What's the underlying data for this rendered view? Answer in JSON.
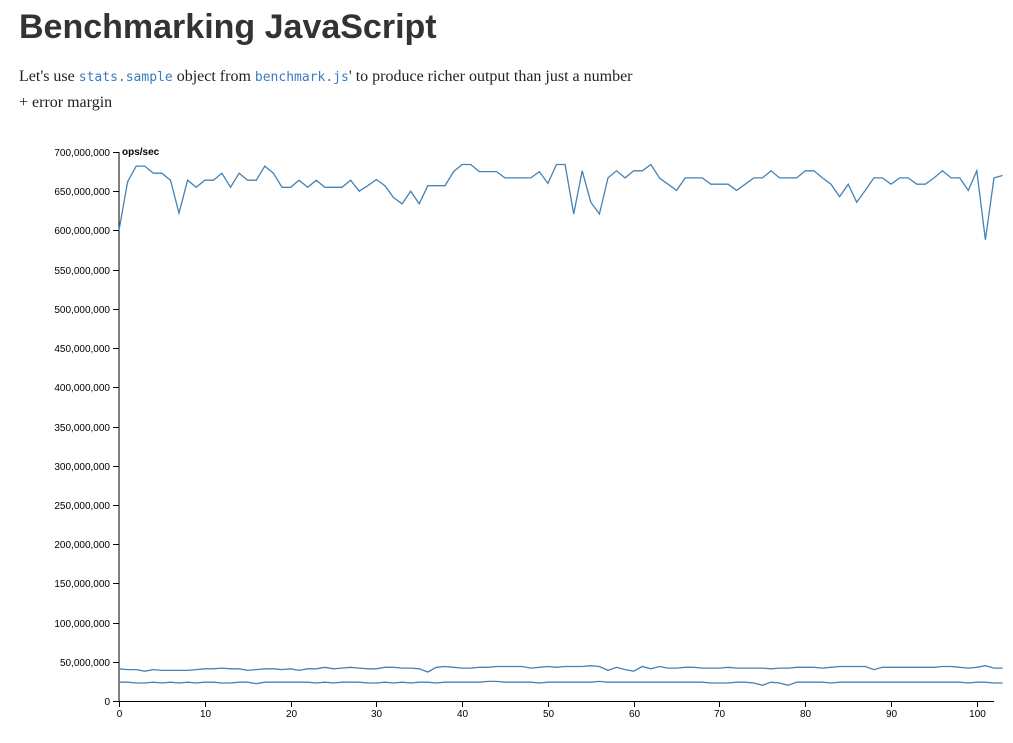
{
  "page": {
    "title": "Benchmarking JavaScript",
    "intro": {
      "before": "Let's use ",
      "code1": "stats.sample",
      "middle": " object from ",
      "code2": "benchmark.js",
      "after": "' to produce richer output than just a number + error margin"
    }
  },
  "colors": {
    "line": "#4682b4",
    "code": "#3a7bbf",
    "title": "#333333"
  },
  "chart_data": {
    "type": "line",
    "title": "",
    "xlabel": "",
    "ylabel": "ops/sec",
    "xlim": [
      0,
      102
    ],
    "ylim": [
      0,
      700000000
    ],
    "grid": false,
    "legend": "none",
    "x_ticks": [
      0,
      10,
      20,
      30,
      40,
      50,
      60,
      70,
      80,
      90,
      100
    ],
    "y_ticks": [
      0,
      50000000,
      100000000,
      150000000,
      200000000,
      250000000,
      300000000,
      350000000,
      400000000,
      450000000,
      500000000,
      550000000,
      600000000,
      650000000,
      700000000
    ],
    "x_tick_labels": [
      "0",
      "10",
      "20",
      "30",
      "40",
      "50",
      "60",
      "70",
      "80",
      "90",
      "100"
    ],
    "y_tick_labels": [
      "0",
      "50,000,000",
      "100,000,000",
      "150,000,000",
      "200,000,000",
      "250,000,000",
      "300,000,000",
      "350,000,000",
      "400,000,000",
      "450,000,000",
      "500,000,000",
      "550,000,000",
      "600,000,000",
      "650,000,000",
      "700,000,000"
    ],
    "series": [
      {
        "values": [
          600,
          662,
          682,
          682,
          673,
          673,
          664,
          622,
          664,
          655,
          664,
          664,
          673,
          655,
          673,
          664,
          664,
          682,
          673,
          655,
          655,
          664,
          655,
          664,
          655,
          655,
          655,
          664,
          650,
          657,
          665,
          657,
          642,
          634,
          650,
          634,
          657,
          657,
          657,
          675,
          684,
          684,
          675,
          675,
          675,
          667,
          667,
          667,
          667,
          675,
          660,
          684,
          684,
          621,
          676,
          636,
          621,
          667,
          676,
          667,
          676,
          676,
          684,
          667,
          659,
          651,
          667,
          667,
          667,
          659,
          659,
          659,
          651,
          659,
          667,
          667,
          676,
          667,
          667,
          667,
          676,
          676,
          667,
          659,
          643,
          659,
          636,
          651,
          667,
          667,
          659,
          667,
          667,
          659,
          659,
          667,
          676,
          667,
          667,
          651,
          676,
          588,
          667,
          670
        ]
      },
      {
        "values": [
          41,
          40,
          40,
          38,
          40,
          39,
          39,
          39,
          39,
          40,
          41,
          41,
          42,
          41,
          41,
          39,
          40,
          41,
          41,
          40,
          41,
          39,
          41,
          41,
          43,
          41,
          42,
          43,
          42,
          41,
          41,
          43,
          43,
          42,
          42,
          41,
          37,
          43,
          44,
          43,
          42,
          42,
          43,
          43,
          44,
          44,
          44,
          44,
          42,
          43,
          44,
          43,
          44,
          44,
          44,
          45,
          44,
          39,
          43,
          40,
          38,
          44,
          41,
          44,
          42,
          42,
          43,
          43,
          42,
          42,
          42,
          43,
          42,
          42,
          42,
          42,
          41,
          42,
          42,
          43,
          43,
          43,
          42,
          43,
          44,
          44,
          44,
          44,
          40,
          43,
          43,
          43,
          43,
          43,
          43,
          43,
          44,
          44,
          43,
          42,
          43,
          45,
          42,
          42
        ]
      },
      {
        "values": [
          24,
          24,
          23,
          23,
          24,
          23,
          24,
          23,
          24,
          23,
          24,
          24,
          23,
          23,
          24,
          24,
          22,
          24,
          24,
          24,
          24,
          24,
          24,
          23,
          24,
          23,
          24,
          24,
          24,
          23,
          23,
          24,
          23,
          24,
          23,
          24,
          24,
          23,
          24,
          24,
          24,
          24,
          24,
          25,
          25,
          24,
          24,
          24,
          24,
          23,
          24,
          24,
          24,
          24,
          24,
          24,
          25,
          24,
          24,
          24,
          24,
          24,
          24,
          24,
          24,
          24,
          24,
          24,
          24,
          23,
          23,
          23,
          24,
          24,
          23,
          20,
          24,
          23,
          20,
          24,
          24,
          24,
          24,
          23,
          24,
          24,
          24,
          24,
          24,
          24,
          24,
          24,
          24,
          24,
          24,
          24,
          24,
          24,
          24,
          23,
          24,
          24,
          23,
          23
        ]
      }
    ],
    "values_unit_multiplier": 1000000
  }
}
